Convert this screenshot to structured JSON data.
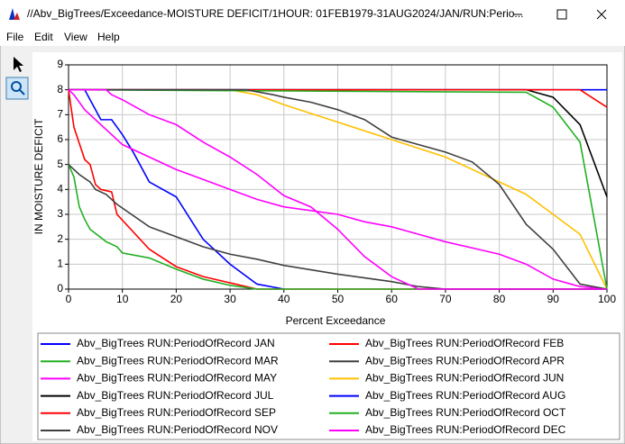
{
  "window": {
    "title": "//Abv_BigTrees/Exceedance-MOISTURE DEFICIT/1HOUR: 01FEB1979-31AUG2024/JAN/RUN:Perio...",
    "menu": [
      "File",
      "Edit",
      "View",
      "Help"
    ]
  },
  "chart_data": {
    "type": "line",
    "x_label": "Percent Exceedance",
    "y_label": "IN MOISTURE DEFICIT",
    "xlim": [
      0,
      100
    ],
    "ylim": [
      0,
      9
    ],
    "xticks": [
      0,
      10,
      20,
      30,
      40,
      50,
      60,
      70,
      80,
      90,
      100
    ],
    "yticks": [
      0,
      1,
      2,
      3,
      4,
      5,
      6,
      7,
      8,
      9
    ],
    "grid": true,
    "legend": "bottom",
    "series": [
      {
        "name": "Abv_BigTrees RUN:PeriodOfRecord JAN",
        "color": "#0000ff",
        "x": [
          0,
          3,
          5,
          6,
          8,
          10,
          12,
          15,
          20,
          25,
          30,
          35,
          40
        ],
        "values": [
          8,
          8,
          7.2,
          6.8,
          6.8,
          6.2,
          5.5,
          4.3,
          3.7,
          2.0,
          1.0,
          0.2,
          0
        ]
      },
      {
        "name": "Abv_BigTrees RUN:PeriodOfRecord FEB",
        "color": "#ff0000",
        "x": [
          0,
          1,
          3,
          4,
          5,
          6,
          8,
          9,
          15,
          20,
          25,
          30,
          35,
          100
        ],
        "values": [
          8,
          6.5,
          5.2,
          5.0,
          4.2,
          4.0,
          3.9,
          3.0,
          1.6,
          0.9,
          0.5,
          0.25,
          0,
          0
        ]
      },
      {
        "name": "Abv_BigTrees RUN:PeriodOfRecord MAR",
        "color": "#22b022",
        "x": [
          0,
          1,
          2,
          3,
          4,
          7,
          9,
          10,
          15,
          20,
          25,
          30,
          35,
          100
        ],
        "values": [
          5,
          4.5,
          3.3,
          2.8,
          2.4,
          1.9,
          1.7,
          1.45,
          1.25,
          0.8,
          0.4,
          0.15,
          0,
          0
        ]
      },
      {
        "name": "Abv_BigTrees RUN:PeriodOfRecord APR",
        "color": "#404040",
        "x": [
          0,
          2,
          4,
          5,
          7,
          9,
          15,
          20,
          25,
          30,
          35,
          40,
          50,
          55,
          60,
          65,
          70,
          100
        ],
        "values": [
          5,
          4.6,
          4.3,
          4.0,
          3.8,
          3.4,
          2.5,
          2.1,
          1.7,
          1.4,
          1.2,
          0.95,
          0.6,
          0.45,
          0.3,
          0.1,
          0,
          0
        ]
      },
      {
        "name": "Abv_BigTrees RUN:PeriodOfRecord MAY",
        "color": "#ff00ff",
        "x": [
          0,
          1,
          3,
          5,
          8,
          10,
          15,
          20,
          25,
          30,
          35,
          40,
          50,
          55,
          60,
          65,
          70,
          80,
          85,
          90,
          95,
          100
        ],
        "values": [
          8,
          7.8,
          7.2,
          6.8,
          6.2,
          5.8,
          5.3,
          4.8,
          4.4,
          4.0,
          3.6,
          3.3,
          3.0,
          2.7,
          2.5,
          2.2,
          1.9,
          1.4,
          1.0,
          0.4,
          0.1,
          0
        ]
      },
      {
        "name": "Abv_BigTrees RUN:PeriodOfRecord JUN",
        "color": "#ffc000",
        "x": [
          0,
          30,
          35,
          40,
          50,
          60,
          70,
          80,
          85,
          90,
          95,
          100
        ],
        "values": [
          8,
          8,
          7.8,
          7.4,
          6.7,
          6.0,
          5.3,
          4.3,
          3.8,
          3.0,
          2.2,
          0
        ]
      },
      {
        "name": "Abv_BigTrees RUN:PeriodOfRecord JUL",
        "color": "#000000",
        "x": [
          0,
          85,
          90,
          95,
          100
        ],
        "values": [
          8,
          8,
          7.7,
          6.6,
          3.7
        ]
      },
      {
        "name": "Abv_BigTrees RUN:PeriodOfRecord AUG",
        "color": "#0000ff",
        "x": [
          0,
          100
        ],
        "values": [
          8,
          8
        ]
      },
      {
        "name": "Abv_BigTrees RUN:PeriodOfRecord SEP",
        "color": "#ff0000",
        "x": [
          0,
          95,
          100
        ],
        "values": [
          8,
          8,
          7.3
        ]
      },
      {
        "name": "Abv_BigTrees RUN:PeriodOfRecord OCT",
        "color": "#22b022",
        "x": [
          0,
          85,
          90,
          95,
          100
        ],
        "values": [
          8,
          7.9,
          7.3,
          5.9,
          0
        ]
      },
      {
        "name": "Abv_BigTrees RUN:PeriodOfRecord NOV",
        "color": "#404040",
        "x": [
          0,
          33,
          38,
          40,
          45,
          50,
          55,
          60,
          70,
          75,
          80,
          85,
          90,
          95,
          100
        ],
        "values": [
          8,
          8,
          7.8,
          7.7,
          7.5,
          7.2,
          6.8,
          6.1,
          5.5,
          5.1,
          4.2,
          2.6,
          1.6,
          0.2,
          0
        ]
      },
      {
        "name": "Abv_BigTrees RUN:PeriodOfRecord DEC",
        "color": "#ff00ff",
        "x": [
          0,
          7,
          8,
          10,
          15,
          20,
          25,
          30,
          35,
          40,
          45,
          50,
          55,
          60,
          65,
          100
        ],
        "values": [
          8,
          8,
          7.8,
          7.6,
          7.0,
          6.6,
          5.9,
          5.3,
          4.6,
          3.75,
          3.3,
          2.4,
          1.3,
          0.5,
          0,
          0
        ]
      }
    ]
  }
}
